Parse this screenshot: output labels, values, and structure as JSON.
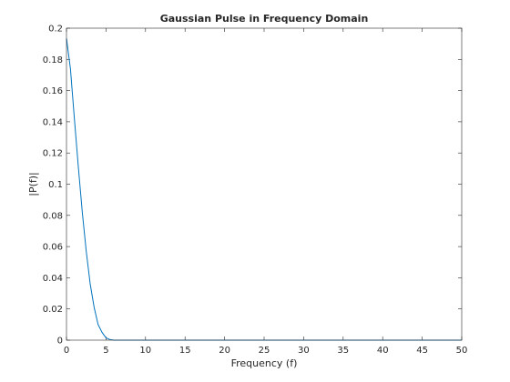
{
  "chart_data": {
    "type": "line",
    "title": "Gaussian Pulse in Frequency Domain",
    "xlabel": "Frequency (f)",
    "ylabel": "|P(f)|",
    "xlim": [
      0,
      50
    ],
    "ylim": [
      0,
      0.2
    ],
    "x_ticks": [
      0,
      5,
      10,
      15,
      20,
      25,
      30,
      35,
      40,
      45,
      50
    ],
    "y_ticks": [
      0,
      0.02,
      0.04,
      0.06,
      0.08,
      0.1,
      0.12,
      0.14,
      0.16,
      0.18,
      0.2
    ],
    "x_tick_labels": [
      "0",
      "5",
      "10",
      "15",
      "20",
      "25",
      "30",
      "35",
      "40",
      "45",
      "50"
    ],
    "y_tick_labels": [
      "0",
      "0.02",
      "0.04",
      "0.06",
      "0.08",
      "0.1",
      "0.12",
      "0.14",
      "0.16",
      "0.18",
      "0.2"
    ],
    "grid": false,
    "series": [
      {
        "color": "#0072bd",
        "x": [
          0,
          0.5,
          1,
          1.5,
          2,
          2.5,
          3,
          3.5,
          4,
          4.5,
          5,
          5.5,
          6,
          8,
          10,
          15,
          20,
          25,
          30,
          35,
          40,
          45,
          50
        ],
        "y": [
          0.1935,
          0.174,
          0.142,
          0.111,
          0.082,
          0.057,
          0.036,
          0.021,
          0.01,
          0.005,
          0.0015,
          0.0004,
          0,
          0,
          0,
          0,
          0,
          0,
          0,
          0,
          0,
          0,
          0
        ]
      }
    ]
  }
}
